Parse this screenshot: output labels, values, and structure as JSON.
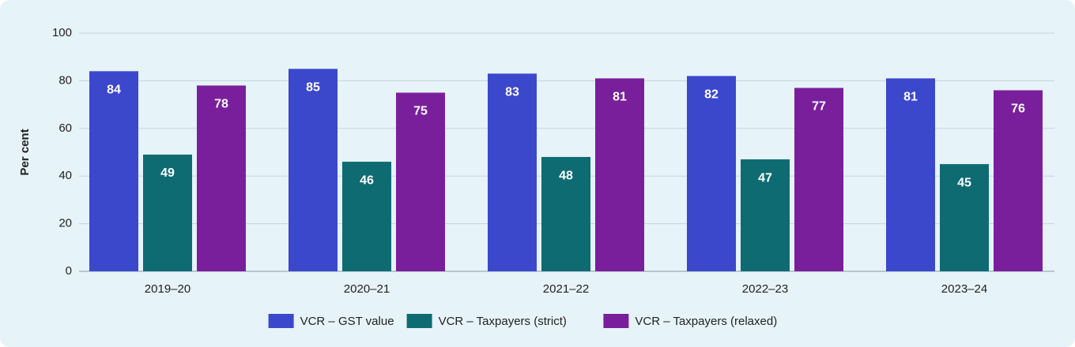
{
  "chart_data": {
    "type": "bar",
    "y_label": "Per cent",
    "categories": [
      "2019–20",
      "2020–21",
      "2021–22",
      "2022–23",
      "2023–24"
    ],
    "series": [
      {
        "name": "VCR – GST value",
        "color": "#3b48cc",
        "values": [
          84,
          85,
          83,
          82,
          81
        ]
      },
      {
        "name": "VCR – Taxpayers (strict)",
        "color": "#0e6b72",
        "values": [
          49,
          46,
          48,
          47,
          45
        ]
      },
      {
        "name": "VCR – Taxpayers (relaxed)",
        "color": "#7a1f9c",
        "values": [
          78,
          75,
          81,
          77,
          76
        ]
      }
    ],
    "ylim": [
      0,
      100
    ],
    "yticks": [
      0,
      20,
      40,
      60,
      80,
      100
    ],
    "grid": true,
    "legend": "bottom"
  }
}
